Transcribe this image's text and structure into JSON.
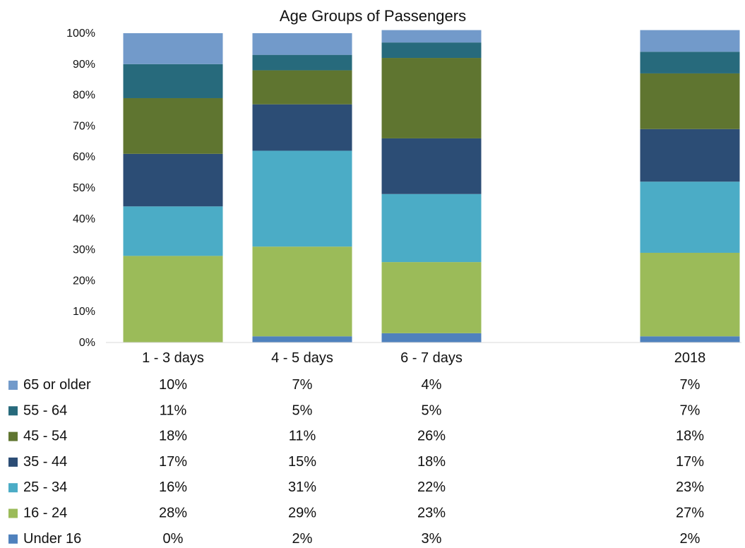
{
  "chart_data": {
    "type": "stacked_bar",
    "title": "Age Groups of Passengers",
    "categories": [
      "1 - 3 days",
      "4 - 5 days",
      "6 - 7 days",
      "2018"
    ],
    "y_ticks": [
      "0%",
      "10%",
      "20%",
      "30%",
      "40%",
      "50%",
      "60%",
      "70%",
      "80%",
      "90%",
      "100%"
    ],
    "ylim": [
      0,
      100
    ],
    "legend_position": "left in data table",
    "series": [
      {
        "name": "Under 16",
        "color": "#4f81bd",
        "values": [
          0,
          2,
          3,
          2
        ],
        "labels": [
          "0%",
          "2%",
          "3%",
          "2%"
        ]
      },
      {
        "name": "16 - 24",
        "color": "#9bbb59",
        "values": [
          28,
          29,
          23,
          27
        ],
        "labels": [
          "28%",
          "29%",
          "23%",
          "27%"
        ]
      },
      {
        "name": "25 - 34",
        "color": "#4bacc6",
        "values": [
          16,
          31,
          22,
          23
        ],
        "labels": [
          "16%",
          "31%",
          "22%",
          "23%"
        ]
      },
      {
        "name": "35 - 44",
        "color": "#2c4d75",
        "values": [
          17,
          15,
          18,
          17
        ],
        "labels": [
          "17%",
          "15%",
          "18%",
          "17%"
        ]
      },
      {
        "name": "45 - 54",
        "color": "#5f7530",
        "values": [
          18,
          11,
          26,
          18
        ],
        "labels": [
          "18%",
          "11%",
          "26%",
          "18%"
        ]
      },
      {
        "name": "55 - 64",
        "color": "#276a7c",
        "values": [
          11,
          5,
          5,
          7
        ],
        "labels": [
          "11%",
          "5%",
          "5%",
          "7%"
        ]
      },
      {
        "name": "65 or older",
        "color": "#729aca",
        "values": [
          10,
          7,
          4,
          7
        ],
        "labels": [
          "10%",
          "7%",
          "4%",
          "7%"
        ]
      }
    ]
  }
}
